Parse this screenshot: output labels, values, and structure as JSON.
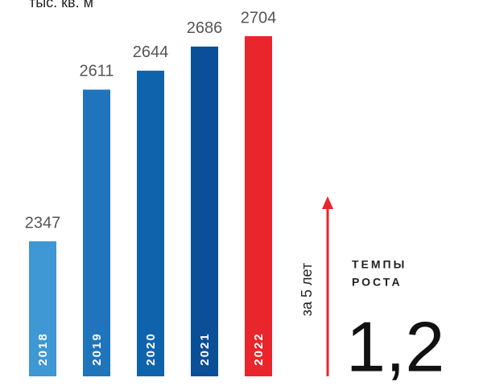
{
  "chart_data": {
    "type": "bar",
    "unit": "тыс. кв. м",
    "categories": [
      "2018",
      "2019",
      "2020",
      "2021",
      "2022"
    ],
    "values": [
      2347,
      2611,
      2644,
      2686,
      2704
    ],
    "colors": [
      "#3f97d3",
      "#1f74bb",
      "#0f63ad",
      "#0a4f98",
      "#e8262b"
    ],
    "ylim": [
      2112,
      2767
    ],
    "growth_period": "за 5 лет",
    "growth_title": [
      "ТЕМПЫ",
      "РОСТА"
    ],
    "growth_value": "1,2"
  }
}
